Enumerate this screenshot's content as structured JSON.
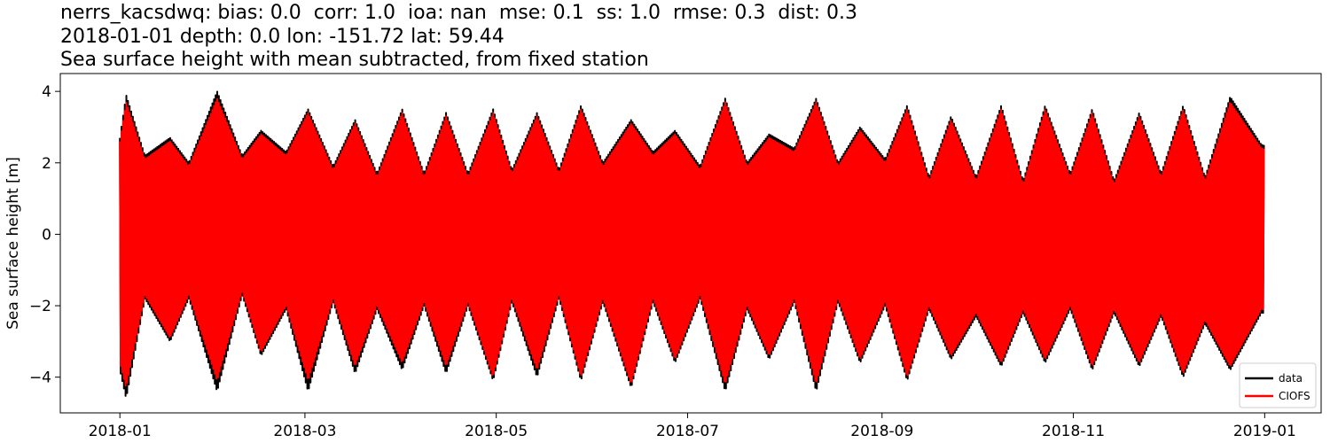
{
  "chart_data": {
    "type": "line",
    "title_lines": [
      "nerrs_kacsdwq: bias: 0.0  corr: 1.0  ioa: nan  mse: 0.1  ss: 1.0  rmse: 0.3  dist: 0.3",
      "2018-01-01 depth: 0.0 lon: -151.72 lat: 59.44",
      "Sea surface height with mean subtracted, from fixed station"
    ],
    "ylabel": "Sea surface height [m]",
    "xlabel": "",
    "xlim": [
      "2017-12-13",
      "2019-01-19"
    ],
    "ylim": [
      -5,
      4.5
    ],
    "x_ticks": [
      "2018-01",
      "2018-03",
      "2018-05",
      "2018-07",
      "2018-09",
      "2018-11",
      "2019-01"
    ],
    "y_ticks": [
      -4,
      -2,
      0,
      2,
      4
    ],
    "y_tick_labels": [
      "−4",
      "−2",
      "0",
      "2",
      "4"
    ],
    "x_range": [
      "2018-01-01",
      "2018-12-31"
    ],
    "grid": false,
    "legend_position": "lower-right",
    "series": [
      {
        "name": "data",
        "color": "#000000",
        "envelope_dates": [
          "2018-01-01",
          "2018-01-03",
          "2018-01-09",
          "2018-01-17",
          "2018-01-23",
          "2018-02-01",
          "2018-02-09",
          "2018-02-15",
          "2018-02-23",
          "2018-03-02",
          "2018-03-10",
          "2018-03-17",
          "2018-03-24",
          "2018-04-01",
          "2018-04-08",
          "2018-04-15",
          "2018-04-22",
          "2018-04-30",
          "2018-05-06",
          "2018-05-14",
          "2018-05-21",
          "2018-05-28",
          "2018-06-04",
          "2018-06-13",
          "2018-06-20",
          "2018-06-27",
          "2018-07-05",
          "2018-07-13",
          "2018-07-20",
          "2018-07-27",
          "2018-08-04",
          "2018-08-11",
          "2018-08-18",
          "2018-08-25",
          "2018-09-02",
          "2018-09-09",
          "2018-09-16",
          "2018-09-23",
          "2018-10-01",
          "2018-10-09",
          "2018-10-16",
          "2018-10-23",
          "2018-10-31",
          "2018-11-07",
          "2018-11-14",
          "2018-11-22",
          "2018-11-29",
          "2018-12-06",
          "2018-12-13",
          "2018-12-21",
          "2018-12-31"
        ],
        "high": [
          2.7,
          3.9,
          2.2,
          2.7,
          2.0,
          4.0,
          2.2,
          2.9,
          2.3,
          3.5,
          1.9,
          3.2,
          1.7,
          3.5,
          1.7,
          3.4,
          1.7,
          3.5,
          1.8,
          3.4,
          1.8,
          3.6,
          2.0,
          3.2,
          2.3,
          2.9,
          1.9,
          3.8,
          2.0,
          2.8,
          2.4,
          3.8,
          2.0,
          3.0,
          2.1,
          3.6,
          1.6,
          3.3,
          1.6,
          3.6,
          1.5,
          3.6,
          1.7,
          3.5,
          1.5,
          3.4,
          1.7,
          3.6,
          1.6,
          3.85,
          2.5
        ],
        "low": [
          -3.8,
          -4.6,
          -1.8,
          -3.0,
          -1.8,
          -4.4,
          -1.7,
          -3.4,
          -2.1,
          -4.4,
          -1.9,
          -3.9,
          -2.1,
          -3.8,
          -2.0,
          -3.9,
          -2.0,
          -4.1,
          -1.9,
          -4.0,
          -1.8,
          -4.1,
          -1.9,
          -4.3,
          -1.9,
          -3.6,
          -1.8,
          -4.4,
          -2.1,
          -3.5,
          -1.9,
          -4.4,
          -1.9,
          -3.6,
          -2.0,
          -4.1,
          -2.1,
          -3.5,
          -2.3,
          -3.7,
          -2.2,
          -3.6,
          -2.1,
          -3.8,
          -2.2,
          -3.7,
          -2.3,
          -4.0,
          -2.5,
          -3.8,
          -2.2
        ]
      },
      {
        "name": "CIOFS",
        "color": "#ff0000",
        "envelope_dates": [
          "2018-01-01",
          "2018-01-03",
          "2018-01-09",
          "2018-01-17",
          "2018-01-23",
          "2018-02-01",
          "2018-02-09",
          "2018-02-15",
          "2018-02-23",
          "2018-03-02",
          "2018-03-10",
          "2018-03-17",
          "2018-03-24",
          "2018-04-01",
          "2018-04-08",
          "2018-04-15",
          "2018-04-22",
          "2018-04-30",
          "2018-05-06",
          "2018-05-14",
          "2018-05-21",
          "2018-05-28",
          "2018-06-04",
          "2018-06-13",
          "2018-06-20",
          "2018-06-27",
          "2018-07-05",
          "2018-07-13",
          "2018-07-20",
          "2018-07-27",
          "2018-08-04",
          "2018-08-11",
          "2018-08-18",
          "2018-08-25",
          "2018-09-02",
          "2018-09-09",
          "2018-09-16",
          "2018-09-23",
          "2018-10-01",
          "2018-10-09",
          "2018-10-16",
          "2018-10-23",
          "2018-10-31",
          "2018-11-07",
          "2018-11-14",
          "2018-11-22",
          "2018-11-29",
          "2018-12-06",
          "2018-12-13",
          "2018-12-21",
          "2018-12-31"
        ],
        "high": [
          2.6,
          3.7,
          2.1,
          2.6,
          1.9,
          3.8,
          2.1,
          2.8,
          2.2,
          3.4,
          1.8,
          3.1,
          1.6,
          3.4,
          1.6,
          3.3,
          1.6,
          3.4,
          1.7,
          3.3,
          1.7,
          3.5,
          1.9,
          3.1,
          2.2,
          2.8,
          1.8,
          3.7,
          1.9,
          2.7,
          2.3,
          3.7,
          1.9,
          2.9,
          2.0,
          3.5,
          1.5,
          3.2,
          1.5,
          3.5,
          1.4,
          3.5,
          1.6,
          3.4,
          1.4,
          3.3,
          1.6,
          3.5,
          1.5,
          3.7,
          2.4
        ],
        "low": [
          -3.6,
          -4.3,
          -1.7,
          -2.9,
          -1.7,
          -4.1,
          -1.6,
          -3.3,
          -2.0,
          -4.1,
          -1.8,
          -3.7,
          -2.0,
          -3.6,
          -1.9,
          -3.7,
          -1.9,
          -4.0,
          -1.8,
          -3.8,
          -1.7,
          -4.0,
          -1.8,
          -4.2,
          -1.8,
          -3.5,
          -1.7,
          -4.2,
          -2.0,
          -3.4,
          -1.8,
          -4.2,
          -1.8,
          -3.5,
          -1.9,
          -4.0,
          -2.0,
          -3.4,
          -2.2,
          -3.6,
          -2.1,
          -3.5,
          -2.0,
          -3.7,
          -2.1,
          -3.6,
          -2.2,
          -3.9,
          -2.4,
          -3.7,
          -2.1
        ]
      }
    ]
  }
}
